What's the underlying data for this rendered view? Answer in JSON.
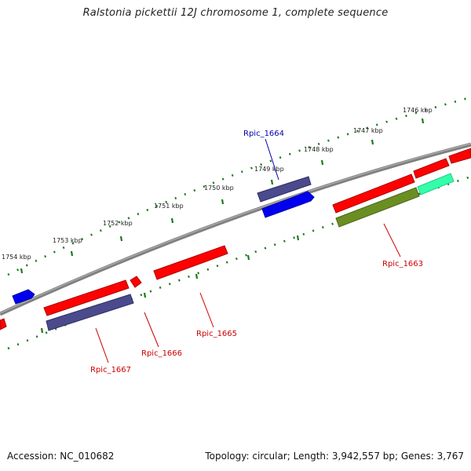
{
  "title": "Ralstonia pickettii 12J chromosome 1, complete sequence",
  "footer": {
    "accession": "Accession: NC_010682",
    "summary": "Topology: circular; Length: 3,942,557 bp; Genes: 3,767"
  },
  "ticks": [
    "1746 kbp",
    "1747 kbp",
    "1748 kbp",
    "1749 kbp",
    "1750 kbp",
    "1751 kbp",
    "1752 kbp",
    "1753 kbp",
    "1754 kbp"
  ],
  "gene_labels": [
    "Rpic_1664",
    "Rpic_1663",
    "Rpic_1665",
    "Rpic_1666",
    "Rpic_1667"
  ],
  "colors": {
    "forward_cds": "#ff0000",
    "reverse_cds": "#ff0000",
    "highlight_blue": "#0000ee",
    "highlight_purple": "#4a4a8c",
    "highlight_olive": "#6b8e23",
    "highlight_teal": "#33ffaa",
    "backbone": "#808080",
    "tick_dots": "#1a7a1a",
    "label_blue": "#0000aa",
    "label_red": "#cc0000"
  }
}
